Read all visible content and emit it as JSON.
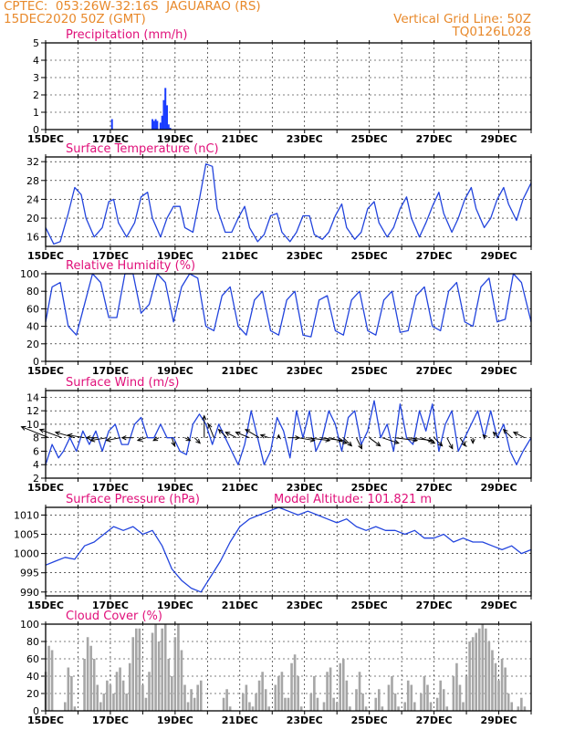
{
  "header": {
    "line1_left": "CPTEC:  053:26W-32:16S  JAGUARAO (RS)",
    "line2_left": "15DEC2020 50Z (GMT)",
    "line2_right": "Vertical Grid Line: 50Z",
    "line3_right": "TQ0126L028"
  },
  "colors": {
    "header": "#e8892b",
    "title": "#e0107a",
    "line": "#2244dd",
    "bar": "#1a3cff",
    "cloud": "#a6a6a6",
    "wind": "#000000"
  },
  "chart_data": [
    {
      "type": "bar",
      "title": "Precipitation (mm/h)",
      "x_ticks": [
        "15DEC",
        "17DEC",
        "19DEC",
        "21DEC",
        "23DEC",
        "25DEC",
        "27DEC",
        "29DEC"
      ],
      "xlim_days": [
        15,
        30
      ],
      "ylim": [
        0,
        5
      ],
      "y_ticks": [
        0,
        1,
        2,
        3,
        4,
        5
      ],
      "grid": "dashed",
      "x": [
        17.05,
        18.3,
        18.35,
        18.4,
        18.45,
        18.55,
        18.6,
        18.65,
        18.7,
        18.75,
        18.8,
        18.85
      ],
      "values": [
        0.6,
        0.6,
        0.5,
        0.6,
        0.5,
        0.4,
        0.8,
        1.7,
        2.4,
        1.4,
        0.3,
        0.1
      ]
    },
    {
      "type": "line",
      "title": "Surface Temperature (nC)",
      "x_ticks": [
        "15DEC",
        "17DEC",
        "19DEC",
        "21DEC",
        "23DEC",
        "25DEC",
        "27DEC",
        "29DEC"
      ],
      "xlim_days": [
        15,
        30
      ],
      "ylim": [
        14,
        33
      ],
      "y_ticks": [
        16,
        20,
        24,
        28,
        32
      ],
      "grid": "dashed",
      "x": [
        15.0,
        15.25,
        15.45,
        15.7,
        15.9,
        16.1,
        16.25,
        16.5,
        16.75,
        16.95,
        17.1,
        17.25,
        17.5,
        17.75,
        17.95,
        18.15,
        18.3,
        18.55,
        18.75,
        18.95,
        19.15,
        19.3,
        19.55,
        19.75,
        19.95,
        20.15,
        20.3,
        20.55,
        20.75,
        20.95,
        21.15,
        21.3,
        21.55,
        21.75,
        21.95,
        22.15,
        22.3,
        22.55,
        22.75,
        22.95,
        23.15,
        23.3,
        23.55,
        23.75,
        23.95,
        24.15,
        24.3,
        24.55,
        24.75,
        24.95,
        25.15,
        25.3,
        25.55,
        25.75,
        25.95,
        26.15,
        26.3,
        26.55,
        26.75,
        26.95,
        27.15,
        27.3,
        27.55,
        27.75,
        27.95,
        28.15,
        28.3,
        28.55,
        28.75,
        28.95,
        29.15,
        29.3,
        29.55,
        29.75,
        30.0
      ],
      "values": [
        18,
        14.5,
        15,
        21,
        26.5,
        25,
        20,
        16,
        18,
        23.5,
        24,
        19,
        16,
        19,
        24.5,
        25.5,
        20,
        16,
        20,
        22.5,
        22.5,
        18,
        17,
        24,
        31.5,
        31,
        22,
        17,
        17,
        20,
        22.5,
        18,
        15,
        16.5,
        20.5,
        21,
        17,
        15,
        17,
        20.5,
        20.5,
        16.5,
        15.5,
        17,
        20.5,
        23,
        18,
        15.5,
        17,
        22,
        23.5,
        19,
        16,
        18,
        22,
        24.5,
        20,
        16,
        19,
        22.5,
        25.5,
        21,
        17,
        20,
        24,
        26.5,
        22,
        18,
        20,
        24,
        26.5,
        23,
        19.5,
        24,
        27.5
      ]
    },
    {
      "type": "line",
      "title": "Relative Humidity (%)",
      "x_ticks": [
        "15DEC",
        "17DEC",
        "19DEC",
        "21DEC",
        "23DEC",
        "25DEC",
        "27DEC",
        "29DEC"
      ],
      "xlim_days": [
        15,
        30
      ],
      "ylim": [
        0,
        100
      ],
      "y_ticks": [
        0,
        20,
        40,
        60,
        80,
        100
      ],
      "grid": "dashed",
      "x": [
        15.0,
        15.2,
        15.45,
        15.7,
        15.95,
        16.2,
        16.45,
        16.7,
        16.95,
        17.2,
        17.45,
        17.7,
        17.95,
        18.2,
        18.45,
        18.7,
        18.95,
        19.2,
        19.45,
        19.7,
        19.95,
        20.2,
        20.45,
        20.7,
        20.95,
        21.2,
        21.45,
        21.7,
        21.95,
        22.2,
        22.45,
        22.7,
        22.95,
        23.2,
        23.45,
        23.7,
        23.95,
        24.2,
        24.45,
        24.7,
        24.95,
        25.2,
        25.45,
        25.7,
        25.95,
        26.2,
        26.45,
        26.7,
        26.95,
        27.2,
        27.45,
        27.7,
        27.95,
        28.2,
        28.45,
        28.7,
        28.95,
        29.2,
        29.45,
        29.7,
        30.0
      ],
      "values": [
        45,
        85,
        90,
        40,
        30,
        65,
        100,
        90,
        50,
        50,
        100,
        100,
        55,
        65,
        100,
        90,
        45,
        85,
        100,
        95,
        40,
        35,
        75,
        85,
        40,
        30,
        70,
        80,
        35,
        30,
        70,
        80,
        30,
        28,
        70,
        75,
        35,
        30,
        70,
        80,
        35,
        30,
        70,
        80,
        33,
        35,
        75,
        85,
        40,
        35,
        80,
        90,
        45,
        40,
        85,
        95,
        45,
        48,
        100,
        90,
        45
      ]
    },
    {
      "type": "line",
      "title": "Surface Wind (m/s)",
      "x_ticks": [
        "15DEC",
        "17DEC",
        "19DEC",
        "21DEC",
        "23DEC",
        "25DEC",
        "27DEC",
        "29DEC"
      ],
      "xlim_days": [
        15,
        30
      ],
      "ylim": [
        2,
        15
      ],
      "y_ticks": [
        2,
        4,
        6,
        8,
        10,
        12,
        14
      ],
      "grid": "dashed",
      "x": [
        15.0,
        15.2,
        15.4,
        15.55,
        15.75,
        15.95,
        16.15,
        16.35,
        16.55,
        16.75,
        16.95,
        17.15,
        17.35,
        17.55,
        17.75,
        17.95,
        18.15,
        18.35,
        18.55,
        18.75,
        18.95,
        19.15,
        19.35,
        19.55,
        19.75,
        19.95,
        20.15,
        20.35,
        20.55,
        20.75,
        20.95,
        21.15,
        21.35,
        21.55,
        21.75,
        21.95,
        22.15,
        22.35,
        22.55,
        22.75,
        22.95,
        23.15,
        23.35,
        23.55,
        23.75,
        23.95,
        24.15,
        24.35,
        24.55,
        24.75,
        24.95,
        25.15,
        25.35,
        25.55,
        25.75,
        25.95,
        26.15,
        26.35,
        26.55,
        26.75,
        26.95,
        27.15,
        27.35,
        27.55,
        27.75,
        27.95,
        28.15,
        28.35,
        28.55,
        28.75,
        28.95,
        29.15,
        29.35,
        29.55,
        29.75,
        30.0
      ],
      "values": [
        4,
        7,
        5,
        6,
        8,
        6,
        9,
        7,
        9,
        6,
        9,
        10,
        7,
        7,
        10,
        11,
        8,
        8,
        10,
        8,
        8,
        6,
        5.5,
        10,
        11.5,
        10,
        7,
        10,
        8,
        6,
        4,
        7,
        12,
        8,
        4,
        6,
        11,
        9,
        5,
        12,
        8,
        12,
        6,
        8,
        12,
        10,
        6,
        11,
        12,
        7,
        9,
        13.5,
        8,
        10,
        6,
        13,
        8,
        7,
        12,
        9,
        13,
        6,
        10,
        12,
        6,
        8,
        10,
        12,
        8,
        12,
        8,
        10,
        6,
        4,
        6,
        8
      ]
    },
    {
      "type": "line",
      "title": "Surface Pressure (hPa)",
      "subtitle": "Model Altitude: 101.821  m",
      "x_ticks": [
        "15DEC",
        "17DEC",
        "19DEC",
        "21DEC",
        "23DEC",
        "25DEC",
        "27DEC",
        "29DEC"
      ],
      "xlim_days": [
        15,
        30
      ],
      "ylim": [
        989,
        1012
      ],
      "y_ticks": [
        990,
        995,
        1000,
        1005,
        1010
      ],
      "grid": "dashed",
      "x": [
        15.0,
        15.3,
        15.6,
        15.9,
        16.2,
        16.5,
        16.8,
        17.1,
        17.4,
        17.7,
        18.0,
        18.3,
        18.6,
        18.9,
        19.2,
        19.5,
        19.8,
        20.1,
        20.4,
        20.7,
        21.0,
        21.3,
        21.6,
        21.9,
        22.2,
        22.5,
        22.8,
        23.1,
        23.4,
        23.7,
        24.0,
        24.3,
        24.6,
        24.9,
        25.2,
        25.5,
        25.8,
        26.1,
        26.4,
        26.7,
        27.0,
        27.3,
        27.6,
        27.9,
        28.2,
        28.5,
        28.8,
        29.1,
        29.4,
        29.7,
        30.0
      ],
      "values": [
        997,
        998,
        999,
        998.5,
        1002,
        1003,
        1005,
        1007,
        1006,
        1007,
        1005,
        1006,
        1002,
        996,
        993,
        991,
        990,
        994,
        998,
        1003,
        1007,
        1009,
        1010,
        1011,
        1012,
        1011,
        1010,
        1011,
        1010,
        1009,
        1008,
        1009,
        1007,
        1006,
        1007,
        1006,
        1006,
        1005,
        1006,
        1004,
        1004,
        1005,
        1003,
        1004,
        1003,
        1003,
        1002,
        1001,
        1002,
        1000,
        1001
      ]
    },
    {
      "type": "bar",
      "title": "Cloud Cover (%)",
      "x_ticks": [
        "15DEC",
        "17DEC",
        "19DEC",
        "21DEC",
        "23DEC",
        "25DEC",
        "27DEC",
        "29DEC"
      ],
      "xlim_days": [
        15,
        30
      ],
      "ylim": [
        0,
        100
      ],
      "y_ticks": [
        0,
        20,
        40,
        60,
        80,
        100
      ],
      "grid": "dashed",
      "x": [
        15.0,
        15.1,
        15.2,
        15.3,
        15.4,
        15.5,
        15.6,
        15.7,
        15.8,
        15.9,
        16.0,
        16.1,
        16.2,
        16.3,
        16.4,
        16.5,
        16.6,
        16.7,
        16.8,
        16.9,
        17.0,
        17.1,
        17.2,
        17.3,
        17.4,
        17.5,
        17.6,
        17.7,
        17.8,
        17.9,
        18.0,
        18.1,
        18.2,
        18.3,
        18.4,
        18.5,
        18.6,
        18.7,
        18.8,
        18.9,
        19.0,
        19.1,
        19.2,
        19.3,
        19.4,
        19.5,
        19.6,
        19.7,
        19.8,
        19.9,
        20.0,
        20.1,
        20.2,
        20.3,
        20.4,
        20.5,
        20.6,
        20.7,
        20.8,
        20.9,
        21.0,
        21.1,
        21.2,
        21.3,
        21.4,
        21.5,
        21.6,
        21.7,
        21.8,
        21.9,
        22.0,
        22.1,
        22.2,
        22.3,
        22.4,
        22.5,
        22.6,
        22.7,
        22.8,
        22.9,
        23.0,
        23.1,
        23.2,
        23.3,
        23.4,
        23.5,
        23.6,
        23.7,
        23.8,
        23.9,
        24.0,
        24.1,
        24.2,
        24.3,
        24.4,
        24.5,
        24.6,
        24.7,
        24.8,
        24.9,
        25.0,
        25.1,
        25.2,
        25.3,
        25.4,
        25.5,
        25.6,
        25.7,
        25.8,
        25.9,
        26.0,
        26.1,
        26.2,
        26.3,
        26.4,
        26.5,
        26.6,
        26.7,
        26.8,
        26.9,
        27.0,
        27.1,
        27.2,
        27.3,
        27.4,
        27.5,
        27.6,
        27.7,
        27.8,
        27.9,
        28.0,
        28.1,
        28.2,
        28.3,
        28.4,
        28.5,
        28.6,
        28.7,
        28.8,
        28.9,
        29.0,
        29.1,
        29.2,
        29.3,
        29.4,
        29.5,
        29.6,
        29.7,
        29.8,
        29.9
      ],
      "values": [
        45,
        75,
        70,
        0,
        0,
        0,
        10,
        50,
        40,
        5,
        0,
        0,
        60,
        85,
        75,
        60,
        30,
        10,
        20,
        35,
        30,
        20,
        45,
        50,
        35,
        20,
        55,
        85,
        95,
        95,
        30,
        15,
        45,
        90,
        100,
        80,
        95,
        100,
        60,
        40,
        85,
        100,
        70,
        30,
        10,
        25,
        15,
        30,
        35,
        0,
        0,
        0,
        0,
        0,
        0,
        15,
        25,
        5,
        0,
        0,
        0,
        20,
        30,
        10,
        5,
        20,
        35,
        45,
        25,
        5,
        0,
        30,
        40,
        45,
        15,
        15,
        55,
        65,
        40,
        5,
        0,
        0,
        20,
        40,
        15,
        0,
        10,
        45,
        50,
        15,
        10,
        55,
        60,
        35,
        5,
        0,
        25,
        45,
        20,
        5,
        0,
        0,
        15,
        25,
        5,
        0,
        30,
        40,
        20,
        5,
        0,
        10,
        35,
        30,
        10,
        0,
        20,
        40,
        30,
        10,
        0,
        15,
        35,
        25,
        5,
        0,
        40,
        55,
        30,
        10,
        40,
        80,
        85,
        90,
        95,
        100,
        95,
        80,
        70,
        55,
        35,
        60,
        50,
        20,
        10,
        0,
        5,
        15,
        5,
        0
      ]
    }
  ],
  "wind_vectors": {
    "x": [
      15.1,
      15.5,
      15.9,
      16.2,
      16.6,
      16.9,
      17.3,
      17.7,
      18.1,
      18.5,
      18.9,
      19.3,
      19.6,
      19.9,
      20.2,
      20.6,
      20.9,
      21.3,
      21.6,
      21.9,
      22.2,
      22.5,
      22.8,
      23.1,
      23.5,
      23.8,
      24.2,
      24.6,
      25.0,
      25.4,
      25.8,
      26.2,
      26.6,
      27.0,
      27.4,
      27.8,
      28.2,
      28.6,
      29.0,
      29.4,
      29.8
    ],
    "u": [
      -10,
      -8,
      -7,
      -6,
      -4,
      -6,
      -5,
      -4,
      -3,
      -2,
      1,
      2,
      2,
      0,
      -2,
      -3,
      -4,
      -5,
      -5,
      -3,
      0,
      4,
      6,
      8,
      8,
      6,
      3,
      2,
      4,
      6,
      8,
      9,
      5,
      3,
      2,
      2,
      0,
      -1,
      -2,
      -3,
      -4
    ],
    "v": [
      4,
      3,
      2,
      1,
      0,
      -1,
      -1,
      0,
      -1,
      -1,
      -3,
      -1,
      -2,
      8,
      5,
      3,
      2,
      2,
      3,
      1,
      1,
      0,
      -1,
      -1,
      -1,
      -2,
      -3,
      -4,
      -3,
      -2,
      -1,
      -1,
      -2,
      -3,
      -4,
      -3,
      -2,
      1,
      2,
      3,
      2
    ]
  }
}
